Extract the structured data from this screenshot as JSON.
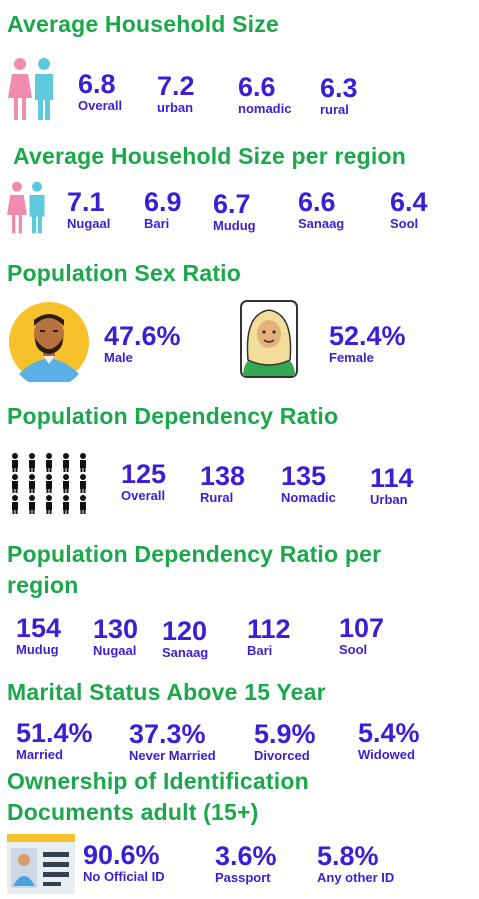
{
  "household": {
    "title": "Average Household Size",
    "stats": [
      {
        "value": "6.8",
        "label": "Overall"
      },
      {
        "value": "7.2",
        "label": "urban"
      },
      {
        "value": "6.6",
        "label": "nomadic"
      },
      {
        "value": "6.3",
        "label": "rural"
      }
    ]
  },
  "household_region": {
    "title": "Average Household Size per region",
    "stats": [
      {
        "value": "7.1",
        "label": "Nugaal"
      },
      {
        "value": "6.9",
        "label": "Bari"
      },
      {
        "value": "6.7",
        "label": "Mudug"
      },
      {
        "value": "6.6",
        "label": "Sanaag"
      },
      {
        "value": "6.4",
        "label": "Sool"
      }
    ]
  },
  "sex_ratio": {
    "title": "Population Sex Ratio",
    "stats": [
      {
        "value": "47.6%",
        "label": "Male"
      },
      {
        "value": "52.4%",
        "label": "Female"
      }
    ]
  },
  "dependency": {
    "title": "Population Dependency Ratio",
    "stats": [
      {
        "value": "125",
        "label": "Overall"
      },
      {
        "value": "138",
        "label": "Rural"
      },
      {
        "value": "135",
        "label": "Nomadic"
      },
      {
        "value": "114",
        "label": "Urban"
      }
    ]
  },
  "dependency_region": {
    "title_line1": "Population Dependency Ratio per",
    "title_line2": "region",
    "stats": [
      {
        "value": "154",
        "label": "Mudug"
      },
      {
        "value": "130",
        "label": "Nugaal"
      },
      {
        "value": "120",
        "label": "Sanaag"
      },
      {
        "value": "112",
        "label": "Bari"
      },
      {
        "value": "107",
        "label": "Sool"
      }
    ]
  },
  "marital": {
    "title": "Marital Status Above 15 Year",
    "stats": [
      {
        "value": "51.4%",
        "label": "Married"
      },
      {
        "value": "37.3%",
        "label": "Never Married"
      },
      {
        "value": "5.9%",
        "label": "Divorced"
      },
      {
        "value": "5.4%",
        "label": "Widowed"
      }
    ]
  },
  "id_docs": {
    "title_line1": "Ownership of Identification",
    "title_line2": "Documents adult (15+)",
    "stats": [
      {
        "value": "90.6%",
        "label": "No Official ID"
      },
      {
        "value": "3.6%",
        "label": "Passport"
      },
      {
        "value": "5.8%",
        "label": "Any other ID"
      }
    ]
  },
  "colors": {
    "heading": "#1aa84a",
    "stat": "#3b1fd6",
    "female_icon": "#f28bb0",
    "male_icon": "#5ec8dc"
  },
  "icons": [
    "family-couple-icon",
    "male-avatar-icon",
    "female-avatar-icon",
    "population-people-icon",
    "id-card-icon"
  ]
}
